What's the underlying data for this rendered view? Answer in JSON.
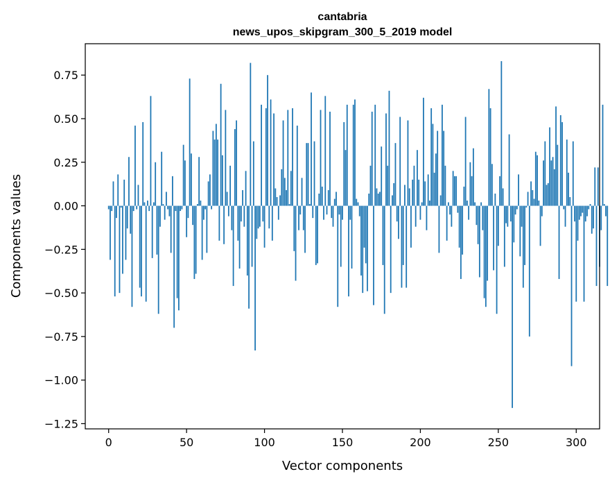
{
  "chart_data": {
    "type": "bar",
    "title": "cantabria",
    "subtitle": "news_upos_skipgram_300_5_2019 model",
    "xlabel": "Vector components",
    "ylabel": "Components values",
    "xlim": [
      -15,
      315
    ],
    "ylim": [
      -1.28,
      0.93
    ],
    "xticks": [
      0,
      50,
      100,
      150,
      200,
      250,
      300
    ],
    "yticks": [
      -1.25,
      -1.0,
      -0.75,
      -0.5,
      -0.25,
      0.0,
      0.25,
      0.5,
      0.75
    ],
    "ytick_labels": [
      "−1.25",
      "−1.00",
      "−0.75",
      "−0.50",
      "−0.25",
      "0.00",
      "0.25",
      "0.50",
      "0.75"
    ],
    "grid": false,
    "bar_color": "#1f77b4",
    "values": [
      -0.02,
      -0.31,
      -0.03,
      0.14,
      -0.52,
      -0.07,
      0.18,
      -0.5,
      -0.01,
      -0.39,
      0.15,
      -0.31,
      -0.13,
      0.28,
      -0.16,
      -0.58,
      -0.03,
      0.46,
      -0.02,
      0.12,
      -0.47,
      -0.52,
      0.48,
      0.02,
      -0.55,
      0.03,
      -0.03,
      0.63,
      -0.3,
      0.02,
      0.25,
      -0.28,
      -0.62,
      -0.12,
      0.31,
      0.01,
      -0.08,
      0.08,
      -0.02,
      -0.06,
      -0.27,
      0.17,
      -0.7,
      -0.03,
      -0.53,
      -0.6,
      -0.03,
      -0.02,
      0.35,
      0.26,
      -0.18,
      -0.07,
      0.73,
      0.3,
      -0.11,
      -0.42,
      -0.39,
      0.01,
      0.28,
      0.03,
      -0.31,
      -0.08,
      -0.02,
      -0.27,
      0.14,
      0.18,
      -0.02,
      0.43,
      0.38,
      0.47,
      0.38,
      -0.2,
      0.7,
      0.29,
      -0.22,
      0.55,
      0.08,
      -0.06,
      0.23,
      -0.14,
      -0.46,
      0.44,
      0.49,
      -0.2,
      -0.36,
      -0.09,
      0.09,
      -0.12,
      0.2,
      -0.4,
      -0.59,
      0.82,
      -0.35,
      0.37,
      -0.83,
      -0.19,
      -0.13,
      -0.12,
      0.58,
      -0.09,
      -0.24,
      0.56,
      0.75,
      -0.13,
      0.61,
      -0.2,
      0.53,
      0.1,
      0.05,
      -0.08,
      0.06,
      0.21,
      0.49,
      0.16,
      0.09,
      0.55,
      0.01,
      0.2,
      0.56,
      -0.26,
      -0.43,
      0.46,
      -0.14,
      -0.05,
      0.16,
      -0.14,
      -0.27,
      0.36,
      0.36,
      0.01,
      0.65,
      -0.07,
      0.37,
      -0.34,
      -0.33,
      0.07,
      0.55,
      0.11,
      -0.08,
      0.63,
      -0.05,
      0.09,
      0.54,
      -0.07,
      -0.12,
      0.04,
      0.08,
      -0.58,
      -0.05,
      -0.35,
      -0.08,
      0.48,
      0.32,
      0.58,
      -0.52,
      -0.08,
      -0.36,
      0.58,
      0.61,
      0.04,
      0.02,
      -0.06,
      -0.4,
      -0.5,
      -0.24,
      -0.33,
      -0.49,
      0.07,
      0.23,
      0.54,
      -0.57,
      0.58,
      0.1,
      0.07,
      0.08,
      0.34,
      -0.34,
      -0.62,
      0.53,
      0.23,
      0.66,
      -0.5,
      0.06,
      0.13,
      0.36,
      -0.09,
      -0.19,
      0.51,
      -0.47,
      -0.34,
      0.12,
      -0.47,
      0.49,
      0.1,
      -0.24,
      0.15,
      0.23,
      -0.12,
      0.32,
      0.15,
      -0.08,
      0.02,
      0.62,
      0.14,
      -0.14,
      0.18,
      0.03,
      0.56,
      0.47,
      0.19,
      0.3,
      0.43,
      -0.27,
      0.06,
      0.58,
      0.43,
      0.23,
      -0.2,
      0.02,
      -0.05,
      -0.12,
      0.2,
      0.17,
      0.17,
      -0.04,
      -0.24,
      -0.42,
      -0.28,
      0.11,
      0.51,
      0.03,
      -0.08,
      0.25,
      0.17,
      0.33,
      0.02,
      -0.11,
      -0.22,
      -0.41,
      0.02,
      -0.14,
      -0.53,
      -0.58,
      -0.43,
      0.67,
      0.56,
      0.24,
      -0.37,
      0.07,
      -0.62,
      -0.23,
      0.17,
      0.83,
      0.1,
      -0.35,
      -0.1,
      -0.12,
      0.41,
      -0.09,
      -1.16,
      -0.21,
      -0.05,
      -0.02,
      0.18,
      -0.29,
      -0.12,
      -0.47,
      -0.34,
      -0.01,
      0.08,
      -0.75,
      0.14,
      0.09,
      0.04,
      0.31,
      0.29,
      0.03,
      -0.23,
      -0.06,
      0.26,
      0.37,
      0.12,
      0.13,
      0.45,
      0.26,
      0.28,
      0.21,
      0.57,
      0.35,
      -0.42,
      0.52,
      0.48,
      -0.02,
      -0.12,
      0.38,
      0.19,
      0.05,
      -0.92,
      0.37,
      -0.09,
      -0.55,
      -0.2,
      -0.08,
      -0.06,
      -0.04,
      -0.55,
      -0.09,
      -0.06,
      -0.02,
      0.01,
      -0.16,
      -0.13,
      0.22,
      -0.46,
      0.22,
      -0.35,
      -0.14,
      0.58,
      0.01,
      -0.06,
      -0.46
    ]
  }
}
